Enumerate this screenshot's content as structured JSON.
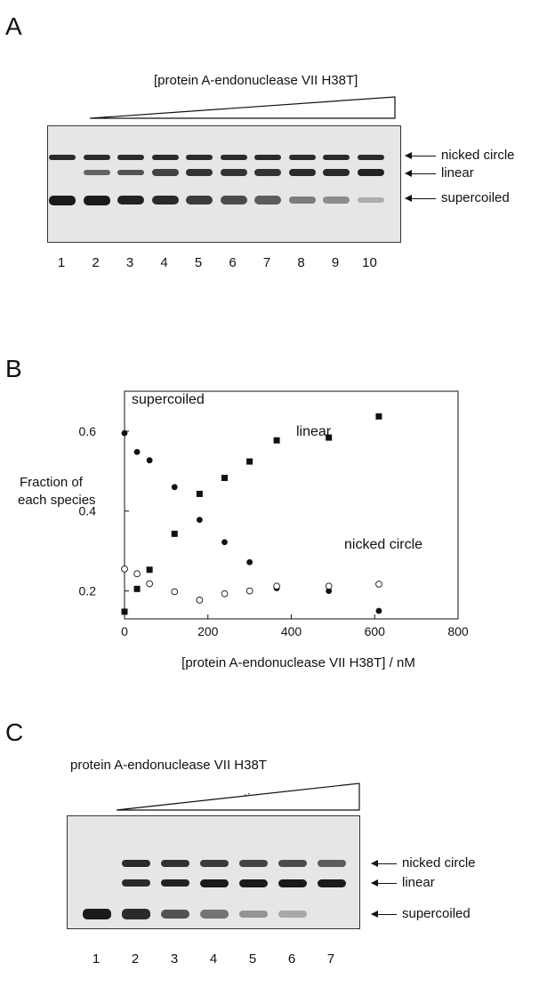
{
  "panels": {
    "A": {
      "letter": "A",
      "title": "[protein A-endonuclease VII H38T]",
      "lanes": [
        "1",
        "2",
        "3",
        "4",
        "5",
        "6",
        "7",
        "8",
        "9",
        "10"
      ],
      "band_labels": [
        "nicked circle",
        "linear",
        "supercoiled"
      ],
      "band_intensity": {
        "nicked": [
          0.9,
          0.9,
          0.9,
          0.9,
          0.9,
          0.9,
          0.9,
          0.9,
          0.9,
          0.9
        ],
        "linear": [
          0,
          0.55,
          0.65,
          0.75,
          0.85,
          0.85,
          0.85,
          0.9,
          0.9,
          0.95
        ],
        "supercoiled": [
          1,
          1,
          0.95,
          0.9,
          0.8,
          0.7,
          0.6,
          0.4,
          0.3,
          0.1
        ]
      }
    },
    "B": {
      "letter": "B"
    },
    "C": {
      "letter": "C",
      "title": "protein A-endonuclease VII H38T",
      "wedge_label": "time",
      "lanes": [
        "1",
        "2",
        "3",
        "4",
        "5",
        "6",
        "7"
      ],
      "band_labels": [
        "nicked circle",
        "linear",
        "supercoiled"
      ],
      "band_intensity": {
        "nicked": [
          0,
          0.9,
          0.85,
          0.8,
          0.75,
          0.7,
          0.6
        ],
        "linear": [
          0,
          0.9,
          0.95,
          1,
          1,
          1,
          1
        ],
        "supercoiled": [
          1,
          0.9,
          0.65,
          0.45,
          0.25,
          0.12,
          0
        ]
      }
    }
  },
  "chart_data": {
    "type": "scatter",
    "title": "",
    "xlabel": "[protein A-endonuclease VII H38T] / nM",
    "ylabel": "Fraction of each species",
    "xlim": [
      0,
      800
    ],
    "ylim": [
      0.13,
      0.7
    ],
    "xticks": [
      "0",
      "200",
      "400",
      "600",
      "800"
    ],
    "yticks": [
      "0.2",
      "0.4",
      "0.6"
    ],
    "grid": false,
    "series": [
      {
        "name": "supercoiled",
        "marker": "filled-circle",
        "x": [
          0,
          30,
          60,
          120,
          180,
          240,
          300,
          365,
          490,
          610
        ],
        "y": [
          0.595,
          0.548,
          0.527,
          0.46,
          0.378,
          0.322,
          0.272,
          0.207,
          0.2,
          0.15
        ]
      },
      {
        "name": "linear",
        "marker": "filled-square",
        "x": [
          0,
          30,
          60,
          120,
          180,
          240,
          300,
          365,
          490,
          610
        ],
        "y": [
          0.148,
          0.205,
          0.253,
          0.343,
          0.443,
          0.483,
          0.524,
          0.577,
          0.584,
          0.637
        ]
      },
      {
        "name": "nicked circle",
        "marker": "open-circle",
        "x": [
          0,
          30,
          60,
          120,
          180,
          240,
          300,
          365,
          490,
          610
        ],
        "y": [
          0.255,
          0.243,
          0.218,
          0.198,
          0.177,
          0.193,
          0.2,
          0.212,
          0.212,
          0.217
        ]
      }
    ],
    "annotations": [
      "supercoiled",
      "linear",
      "nicked circle"
    ]
  }
}
